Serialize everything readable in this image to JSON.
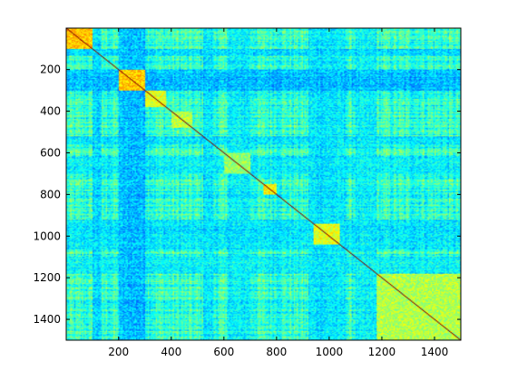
{
  "chart_data": {
    "type": "heatmap",
    "title": "",
    "xlabel": "",
    "ylabel": "",
    "xlim": [
      1,
      1500
    ],
    "ylim": [
      1,
      1500
    ],
    "y_reversed": true,
    "xticks": [
      200,
      400,
      600,
      800,
      1000,
      1200,
      1400
    ],
    "yticks": [
      200,
      400,
      600,
      800,
      1000,
      1200,
      1400
    ],
    "xtick_labels": [
      "200",
      "400",
      "600",
      "800",
      "1000",
      "1200",
      "1400"
    ],
    "ytick_labels": [
      "200",
      "400",
      "600",
      "800",
      "1000",
      "1200",
      "1400"
    ],
    "colormap": "jet",
    "symmetric": true,
    "diagonal_value": 1.0,
    "background_level": 0.42,
    "low_level": 0.22,
    "blocks": [
      {
        "start": 1,
        "end": 100,
        "value": 0.68
      },
      {
        "start": 200,
        "end": 300,
        "value": 0.68
      },
      {
        "start": 300,
        "end": 380,
        "value": 0.6
      },
      {
        "start": 400,
        "end": 480,
        "value": 0.56
      },
      {
        "start": 600,
        "end": 700,
        "value": 0.52
      },
      {
        "start": 750,
        "end": 800,
        "value": 0.64
      },
      {
        "start": 940,
        "end": 1040,
        "value": 0.6
      },
      {
        "start": 1180,
        "end": 1500,
        "value": 0.55
      }
    ],
    "low_bands": [
      {
        "start": 100,
        "end": 135,
        "value": 0.28
      },
      {
        "start": 200,
        "end": 300,
        "value": 0.22
      },
      {
        "start": 520,
        "end": 560,
        "value": 0.3
      },
      {
        "start": 620,
        "end": 700,
        "value": 0.32
      },
      {
        "start": 920,
        "end": 1060,
        "value": 0.3
      },
      {
        "start": 1100,
        "end": 1180,
        "value": 0.32
      }
    ]
  }
}
